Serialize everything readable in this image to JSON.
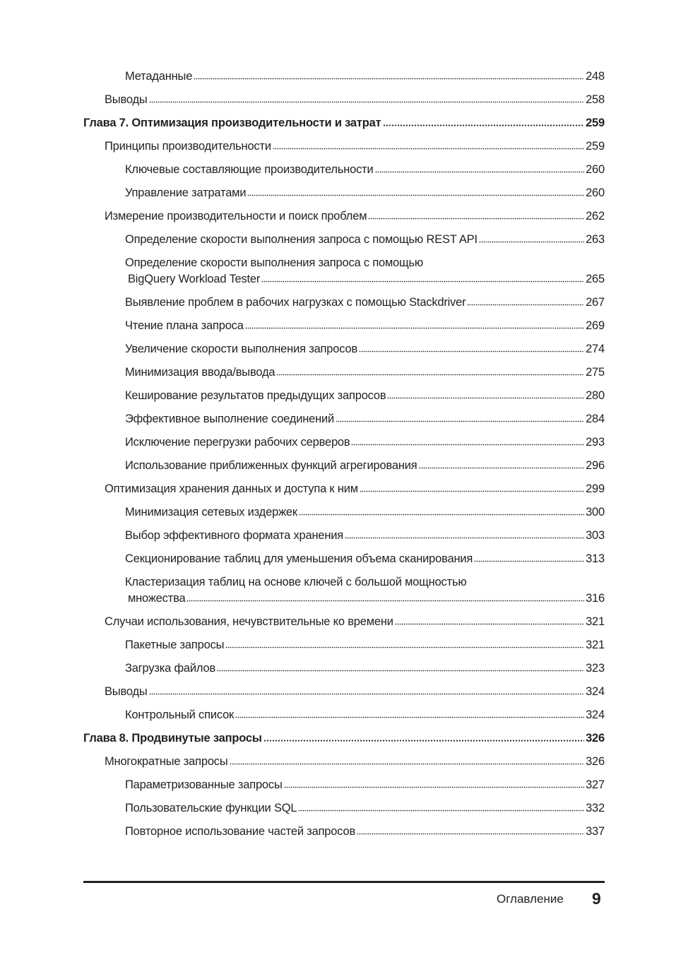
{
  "toc": [
    {
      "level": 2,
      "title": "Метаданные",
      "page": "248"
    },
    {
      "level": 1,
      "title": "Выводы",
      "page": "258"
    },
    {
      "level": 0,
      "title": "Глава 7. Оптимизация производительности и затрат",
      "page": "259"
    },
    {
      "level": 1,
      "title": "Принципы производительности",
      "page": "259"
    },
    {
      "level": 2,
      "title": "Ключевые составляющие производительности",
      "page": "260"
    },
    {
      "level": 2,
      "title": "Управление затратами",
      "page": "260"
    },
    {
      "level": 1,
      "title": "Измерение производительности и поиск проблем",
      "page": "262"
    },
    {
      "level": 2,
      "title": "Определение скорости выполнения запроса с помощью REST API",
      "page": "263"
    },
    {
      "level": 2,
      "title_line1": "Определение скорости выполнения запроса с помощью",
      "title": "BigQuery Workload Tester",
      "page": "265"
    },
    {
      "level": 2,
      "title": "Выявление проблем в рабочих нагрузках с помощью Stackdriver",
      "page": "267"
    },
    {
      "level": 2,
      "title": "Чтение плана запроса",
      "page": "269"
    },
    {
      "level": 2,
      "title": "Увеличение скорости выполнения запросов",
      "page": "274"
    },
    {
      "level": 2,
      "title": "Минимизация ввода/вывода",
      "page": "275"
    },
    {
      "level": 2,
      "title": "Кеширование результатов предыдущих запросов",
      "page": "280"
    },
    {
      "level": 2,
      "title": "Эффективное выполнение соединений",
      "page": "284"
    },
    {
      "level": 2,
      "title": "Исключение перегрузки рабочих серверов",
      "page": "293"
    },
    {
      "level": 2,
      "title": "Использование приближенных функций агрегирования",
      "page": "296"
    },
    {
      "level": 1,
      "title": "Оптимизация хранения данных и доступа к ним",
      "page": "299"
    },
    {
      "level": 2,
      "title": "Минимизация сетевых издержек",
      "page": "300"
    },
    {
      "level": 2,
      "title": "Выбор эффективного формата хранения",
      "page": "303"
    },
    {
      "level": 2,
      "title": "Секционирование таблиц для уменьшения объема сканирования",
      "page": "313"
    },
    {
      "level": 2,
      "title_line1": "Кластеризация таблиц на основе ключей с большой мощностью",
      "title": "множества",
      "page": "316"
    },
    {
      "level": 1,
      "title": "Случаи использования, нечувствительные ко времени",
      "page": "321"
    },
    {
      "level": 2,
      "title": "Пакетные запросы",
      "page": "321"
    },
    {
      "level": 2,
      "title": "Загрузка файлов",
      "page": "323"
    },
    {
      "level": 1,
      "title": "Выводы",
      "page": "324"
    },
    {
      "level": 2,
      "title": "Контрольный список",
      "page": "324"
    },
    {
      "level": 0,
      "title": "Глава 8. Продвинутые запросы",
      "page": "326"
    },
    {
      "level": 1,
      "title": "Многократные запросы",
      "page": "326"
    },
    {
      "level": 2,
      "title": "Параметризованные запросы",
      "page": "327"
    },
    {
      "level": 2,
      "title": "Пользовательские функции SQL",
      "page": "332"
    },
    {
      "level": 2,
      "title": "Повторное использование частей запросов",
      "page": "337"
    }
  ],
  "footer": {
    "section_label": "Оглавление",
    "page_number": "9"
  }
}
